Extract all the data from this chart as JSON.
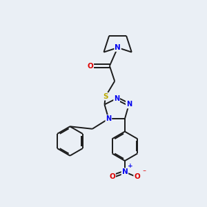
{
  "bg_color": "#eaeff5",
  "bond_color": "#1a1a1a",
  "N_color": "#0000ee",
  "O_color": "#dd0000",
  "S_color": "#bbaa00",
  "line_width": 1.4,
  "figsize": [
    3.0,
    3.0
  ],
  "dpi": 100,
  "xlim": [
    0,
    10
  ],
  "ylim": [
    0,
    10
  ]
}
